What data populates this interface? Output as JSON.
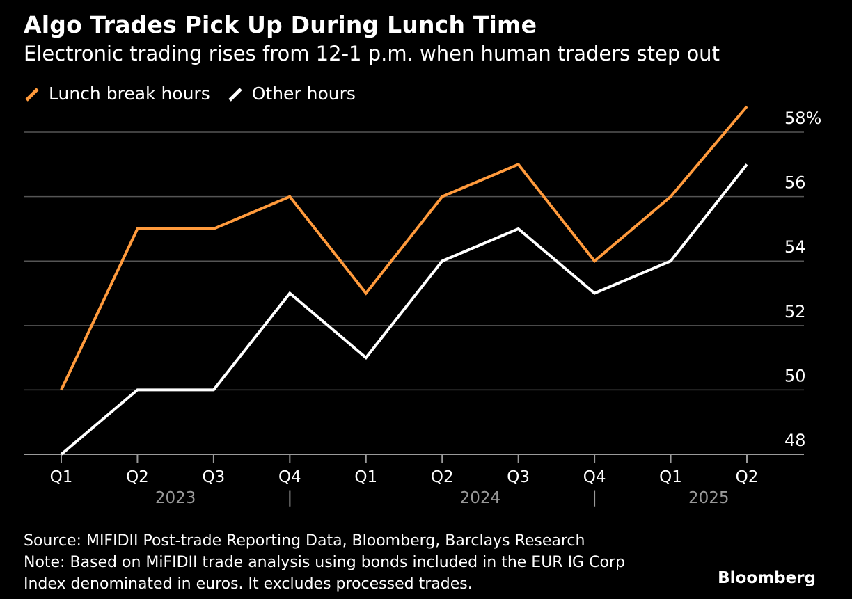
{
  "chart_data": {
    "type": "line",
    "title": "Algo Trades Pick Up During Lunch Time",
    "subtitle": "Electronic trading rises from 12-1 p.m. when human traders step out",
    "categories": [
      "Q1",
      "Q2",
      "Q3",
      "Q4",
      "Q1",
      "Q2",
      "Q3",
      "Q4",
      "Q1",
      "Q2"
    ],
    "years": [
      {
        "label": "2023",
        "from": 0,
        "to": 3
      },
      {
        "label": "2024",
        "from": 4,
        "to": 7
      },
      {
        "label": "2025",
        "from": 8,
        "to": 9
      }
    ],
    "year_separators": [
      "|",
      "|"
    ],
    "series": [
      {
        "name": "Lunch break hours",
        "color": "#FF9A3C",
        "values": [
          50,
          55,
          55,
          56,
          53,
          56,
          57,
          54,
          56,
          58.8
        ]
      },
      {
        "name": "Other hours",
        "color": "#FFFFFF",
        "values": [
          48,
          50,
          50,
          53,
          51,
          54,
          55,
          53,
          54,
          57
        ]
      }
    ],
    "ylim": [
      48,
      58.8
    ],
    "yticks": [
      48,
      50,
      52,
      54,
      56,
      58
    ],
    "ytick_labels": [
      "48",
      "50",
      "52",
      "54",
      "56",
      "58%"
    ],
    "grid": true,
    "legend_position": "top-left"
  },
  "footer": {
    "source": "Source: MIFIDII Post-trade Reporting Data, Bloomberg, Barclays Research",
    "note_line1": "Note: Based on MiFIDII trade analysis using bonds included in the EUR IG Corp",
    "note_line2": "Index denominated in euros. It excludes processed trades."
  },
  "brand": "Bloomberg"
}
